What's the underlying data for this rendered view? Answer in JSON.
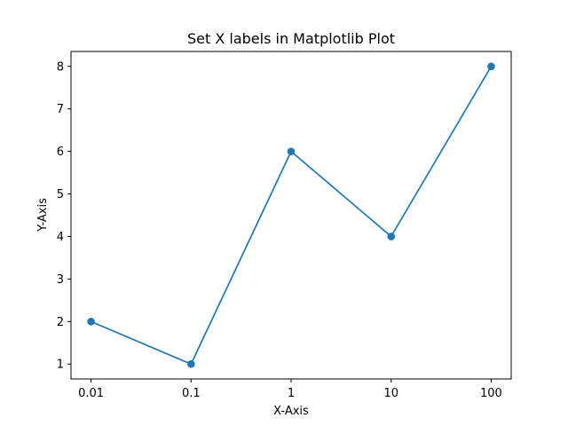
{
  "chart_data": {
    "type": "line",
    "title": "Set X labels in Matplotlib Plot",
    "xlabel": "X-Axis",
    "ylabel": "Y-Axis",
    "categories": [
      "0.01",
      "0.1",
      "1",
      "10",
      "100"
    ],
    "series": [
      {
        "values": [
          2,
          1,
          6,
          4,
          8
        ],
        "marker": "circle",
        "color": "#1f77b4"
      }
    ],
    "yticks": [
      "1",
      "2",
      "3",
      "4",
      "5",
      "6",
      "7",
      "8"
    ],
    "ylim": [
      0.65,
      8.35
    ],
    "grid": false,
    "legend": "none"
  }
}
